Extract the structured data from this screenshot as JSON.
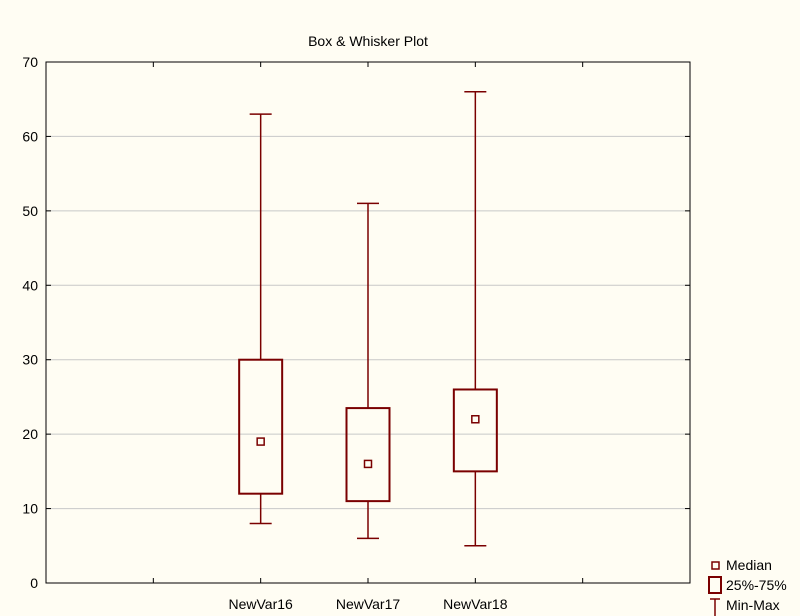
{
  "chart_data": {
    "type": "box",
    "title": "Box & Whisker Plot",
    "xlabel": "",
    "ylabel": "",
    "ylim": [
      0,
      70
    ],
    "yticks": [
      0,
      10,
      20,
      30,
      40,
      50,
      60,
      70
    ],
    "grid": true,
    "legend_position": "bottom-right",
    "series_color": "#7a0000",
    "categories": [
      "NewVar16",
      "NewVar17",
      "NewVar18"
    ],
    "boxes": [
      {
        "name": "NewVar16",
        "min": 8,
        "q1": 12,
        "median": 19,
        "q3": 30,
        "max": 63
      },
      {
        "name": "NewVar17",
        "min": 6,
        "q1": 11,
        "median": 16,
        "q3": 23.5,
        "max": 51
      },
      {
        "name": "NewVar18",
        "min": 5,
        "q1": 15,
        "median": 22,
        "q3": 26,
        "max": 66
      }
    ],
    "legend": [
      {
        "label": "Median",
        "symbol": "small-square"
      },
      {
        "label": "25%-75%",
        "symbol": "box"
      },
      {
        "label": "Min-Max",
        "symbol": "whisker"
      }
    ]
  }
}
